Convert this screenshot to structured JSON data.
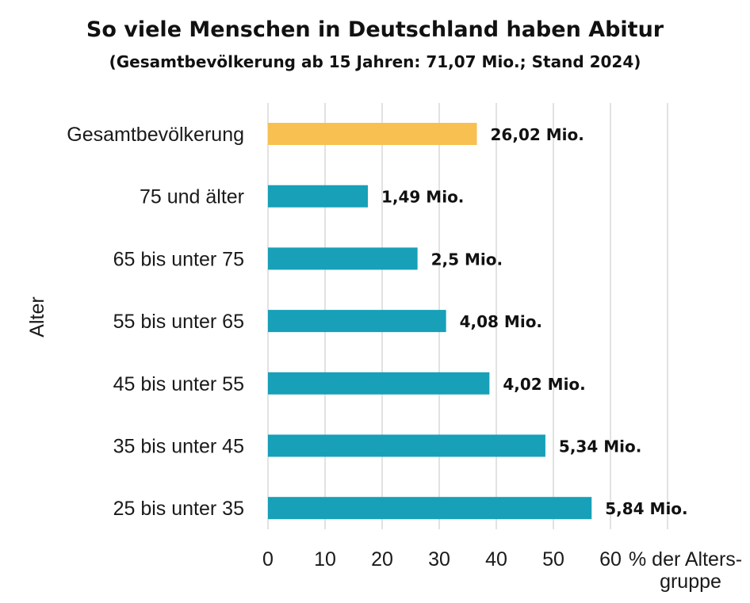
{
  "chart_data": {
    "type": "bar",
    "orientation": "horizontal",
    "title": "So viele Menschen in Deutschland haben Abitur",
    "subtitle": "(Gesamtbevölkerung ab 15 Jahren: 71,07 Mio.; Stand 2024)",
    "ylabel": "Alter",
    "xlabel_lines": [
      "% der Alters-",
      "gruppe"
    ],
    "xlim": [
      0,
      70
    ],
    "xticks": [
      0,
      10,
      20,
      30,
      40,
      50,
      60
    ],
    "grid": true,
    "categories": [
      "Gesamtbevölkerung",
      "75 und älter",
      "65 bis unter 75",
      "55 bis unter 65",
      "45 bis unter 55",
      "35 bis unter 45",
      "25 bis unter 35"
    ],
    "values": [
      36.6,
      17.5,
      26.2,
      31.2,
      38.8,
      48.6,
      56.7
    ],
    "labels": [
      "26,02 Mio.",
      "1,49 Mio.",
      "2,5 Mio.",
      "4,08 Mio.",
      "4,02 Mio.",
      "5,34 Mio.",
      "5,84 Mio."
    ],
    "colors": [
      "#f8c050",
      "#17a0b8",
      "#17a0b8",
      "#17a0b8",
      "#17a0b8",
      "#17a0b8",
      "#17a0b8"
    ]
  }
}
